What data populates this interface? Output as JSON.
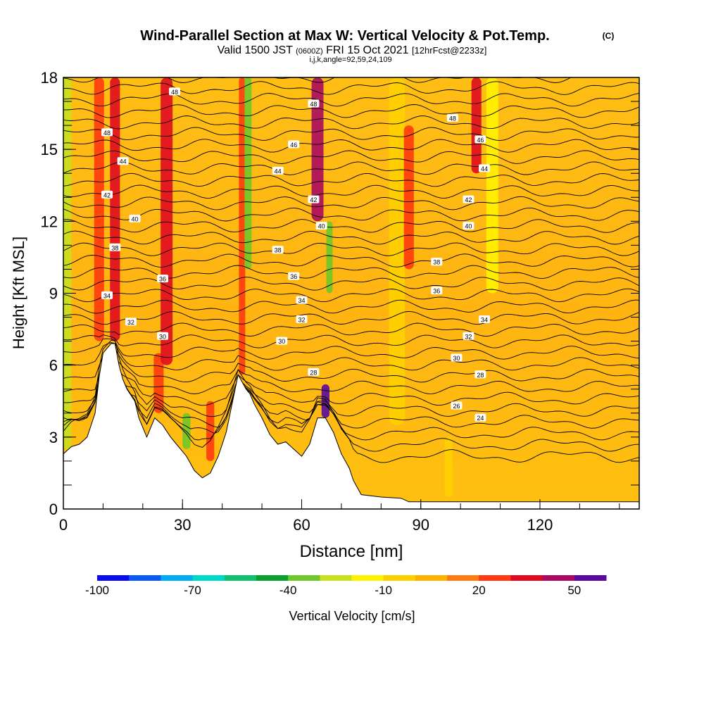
{
  "chart_data": {
    "type": "heatmap",
    "title": "Wind-Parallel Section at Max W: Vertical Velocity & Pot.Temp.",
    "title_mark": "(C)",
    "subtitle": {
      "valid_a": "Valid 1500 JST",
      "valid_utc": "(0600Z)",
      "valid_b": "FRI 15 Oct 2021",
      "forecast": "[12hrFcst@2233z]"
    },
    "indices_label": "i,j,k,angle=92,59,24,109",
    "xlabel": "Distance [nm]",
    "ylabel": "Height [Kft MSL]",
    "xlim": [
      0,
      145
    ],
    "ylim": [
      0,
      18
    ],
    "x_ticks": [
      0,
      30,
      60,
      90,
      120
    ],
    "y_ticks": [
      0,
      3,
      6,
      9,
      12,
      15,
      18
    ],
    "x_tick_labels": [
      "0",
      "30",
      "60",
      "90",
      "120"
    ],
    "y_tick_labels": [
      "0",
      "3",
      "6",
      "9",
      "12",
      "15",
      "18"
    ],
    "terrain_profile": {
      "x": [
        0,
        2,
        4,
        6,
        8,
        9,
        10,
        12,
        13,
        14,
        15,
        16,
        18,
        19,
        21,
        23,
        25,
        27,
        29,
        31,
        33,
        35,
        37,
        39,
        41,
        43,
        44,
        45,
        46,
        47,
        48,
        50,
        52,
        54,
        56,
        58,
        60,
        62,
        64,
        66,
        68,
        70,
        72,
        73,
        75,
        80,
        85,
        87,
        90,
        95,
        100,
        110,
        120,
        130,
        140,
        145
      ],
      "y": [
        2.3,
        2.6,
        2.7,
        3.0,
        4.0,
        5.5,
        6.5,
        6.9,
        6.9,
        6.0,
        5.4,
        5.0,
        4.5,
        3.8,
        3.0,
        3.8,
        3.5,
        3.0,
        2.6,
        2.2,
        1.6,
        1.3,
        1.5,
        2.2,
        3.2,
        4.8,
        5.6,
        5.3,
        5.0,
        4.8,
        4.4,
        3.8,
        3.1,
        2.7,
        2.8,
        2.5,
        2.2,
        2.7,
        3.8,
        3.8,
        3.2,
        2.3,
        1.7,
        1.2,
        0.6,
        0.5,
        0.45,
        0.3,
        0.3,
        0.3,
        0.3,
        0.3,
        0.3,
        0.3,
        0.3,
        0.3
      ]
    },
    "vertical_velocity_bands": [
      {
        "x": 1,
        "w": 2,
        "y0": 2.5,
        "y1": 18,
        "value": -30
      },
      {
        "x": 9,
        "w": 2.5,
        "y0": 7,
        "y1": 18,
        "value": 25
      },
      {
        "x": 13,
        "w": 2.5,
        "y0": 7,
        "y1": 18,
        "value": 35
      },
      {
        "x": 24,
        "w": 2.5,
        "y0": 4,
        "y1": 6.5,
        "value": 20
      },
      {
        "x": 26,
        "w": 3,
        "y0": 6,
        "y1": 18,
        "value": 30
      },
      {
        "x": 31,
        "w": 2,
        "y0": 2.5,
        "y1": 4,
        "value": -40
      },
      {
        "x": 37,
        "w": 2,
        "y0": 2,
        "y1": 4.5,
        "value": 25
      },
      {
        "x": 45,
        "w": 1.6,
        "y0": 5.6,
        "y1": 18,
        "value": 20
      },
      {
        "x": 46.5,
        "w": 1.8,
        "y0": 10,
        "y1": 18,
        "value": -40
      },
      {
        "x": 64,
        "w": 3,
        "y0": 12,
        "y1": 18,
        "value": 45
      },
      {
        "x": 66,
        "w": 2,
        "y0": 3.8,
        "y1": 5.2,
        "value": 55
      },
      {
        "x": 67,
        "w": 1.6,
        "y0": 9,
        "y1": 12,
        "value": -40
      },
      {
        "x": 84,
        "w": 4,
        "y0": 3.5,
        "y1": 18,
        "value": -10
      },
      {
        "x": 87,
        "w": 2.5,
        "y0": 10,
        "y1": 16,
        "value": 20
      },
      {
        "x": 104,
        "w": 2.5,
        "y0": 14,
        "y1": 18,
        "value": 30
      },
      {
        "x": 108,
        "w": 3,
        "y0": 9,
        "y1": 18,
        "value": -20
      },
      {
        "x": 97,
        "w": 2,
        "y0": 0.5,
        "y1": 3,
        "value": -10
      }
    ],
    "theta_labels": [
      {
        "x": 28,
        "y": 17.4,
        "text": "48"
      },
      {
        "x": 63,
        "y": 16.9,
        "text": "48"
      },
      {
        "x": 11,
        "y": 15.7,
        "text": "48"
      },
      {
        "x": 98,
        "y": 16.3,
        "text": "48"
      },
      {
        "x": 58,
        "y": 15.2,
        "text": "46"
      },
      {
        "x": 105,
        "y": 15.4,
        "text": "46"
      },
      {
        "x": 15,
        "y": 14.5,
        "text": "44"
      },
      {
        "x": 54,
        "y": 14.1,
        "text": "44"
      },
      {
        "x": 106,
        "y": 14.2,
        "text": "44"
      },
      {
        "x": 11,
        "y": 13.1,
        "text": "42"
      },
      {
        "x": 63,
        "y": 12.9,
        "text": "42"
      },
      {
        "x": 102,
        "y": 12.9,
        "text": "42"
      },
      {
        "x": 18,
        "y": 12.1,
        "text": "40"
      },
      {
        "x": 65,
        "y": 11.8,
        "text": "40"
      },
      {
        "x": 102,
        "y": 11.8,
        "text": "40"
      },
      {
        "x": 13,
        "y": 10.9,
        "text": "38"
      },
      {
        "x": 54,
        "y": 10.8,
        "text": "38"
      },
      {
        "x": 94,
        "y": 10.3,
        "text": "38"
      },
      {
        "x": 25,
        "y": 9.6,
        "text": "36"
      },
      {
        "x": 58,
        "y": 9.7,
        "text": "36"
      },
      {
        "x": 94,
        "y": 9.1,
        "text": "36"
      },
      {
        "x": 11,
        "y": 8.9,
        "text": "34"
      },
      {
        "x": 60,
        "y": 8.7,
        "text": "34"
      },
      {
        "x": 106,
        "y": 7.9,
        "text": "34"
      },
      {
        "x": 17,
        "y": 7.8,
        "text": "32"
      },
      {
        "x": 60,
        "y": 7.9,
        "text": "32"
      },
      {
        "x": 102,
        "y": 7.2,
        "text": "32"
      },
      {
        "x": 25,
        "y": 7.2,
        "text": "30"
      },
      {
        "x": 55,
        "y": 7.0,
        "text": "30"
      },
      {
        "x": 99,
        "y": 6.3,
        "text": "30"
      },
      {
        "x": 63,
        "y": 5.7,
        "text": "28"
      },
      {
        "x": 105,
        "y": 5.6,
        "text": "28"
      },
      {
        "x": 99,
        "y": 4.3,
        "text": "26"
      },
      {
        "x": 105,
        "y": 3.8,
        "text": "24"
      }
    ],
    "colorbar": {
      "label": "Vertical Velocity [cm/s]",
      "min": -100,
      "max": 60,
      "step": 10,
      "colors": [
        "#0a0cf0",
        "#0a58f5",
        "#00acf5",
        "#00d8c8",
        "#12c070",
        "#0aa030",
        "#70c82a",
        "#c8e01e",
        "#fff200",
        "#ffd000",
        "#ffb000",
        "#ff7a10",
        "#ff3a10",
        "#e00a20",
        "#aa0a60",
        "#5a0aa0"
      ],
      "tick_values": [
        -100,
        -70,
        -40,
        -10,
        20,
        50
      ],
      "tick_labels": [
        "-100",
        "-70",
        "-40",
        "-10",
        "20",
        "50"
      ]
    }
  }
}
